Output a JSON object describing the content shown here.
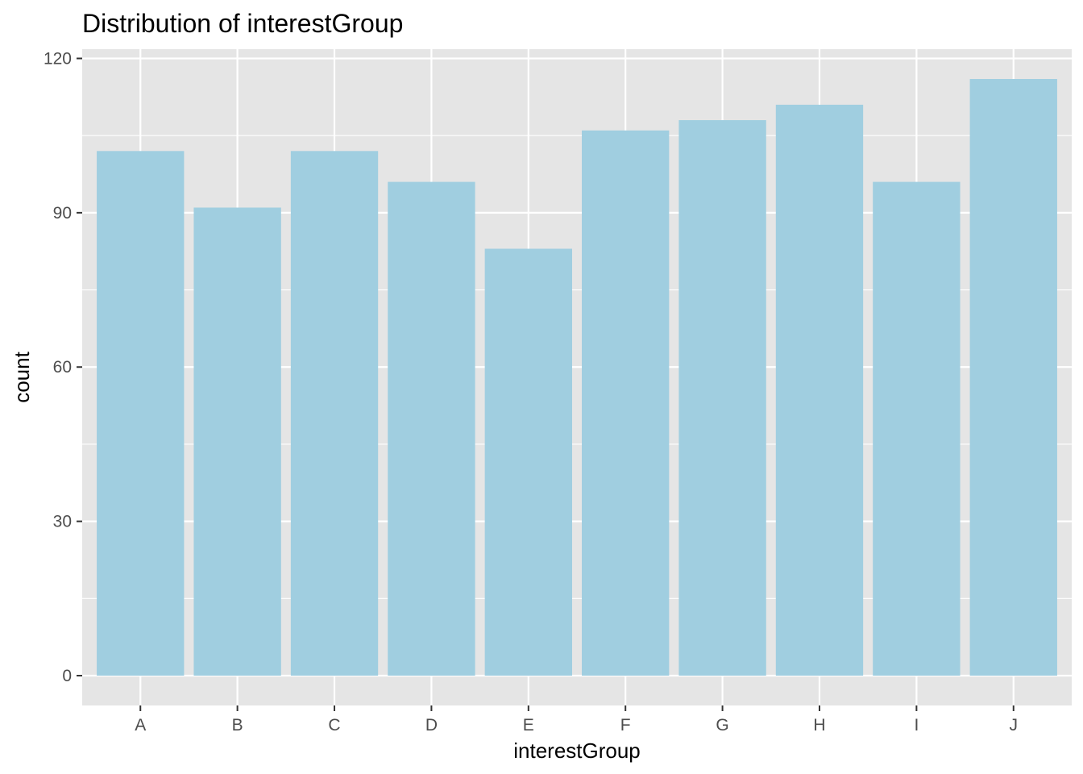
{
  "chart_data": {
    "type": "bar",
    "title": "Distribution of interestGroup",
    "xlabel": "interestGroup",
    "ylabel": "count",
    "categories": [
      "A",
      "B",
      "C",
      "D",
      "E",
      "F",
      "G",
      "H",
      "I",
      "J"
    ],
    "values": [
      102,
      91,
      102,
      96,
      83,
      106,
      108,
      111,
      96,
      116
    ],
    "ylim": [
      -5.8,
      121.8
    ],
    "y_ticks": [
      0,
      30,
      60,
      90,
      120
    ],
    "y_tick_labels": [
      "0",
      "30",
      "60",
      "90",
      "120"
    ],
    "y_minor_ticks": [
      15,
      45,
      75,
      105
    ],
    "grid": true,
    "legend": "none",
    "colors": {
      "bar": "#a0cee0",
      "panel_background": "#e5e5e5",
      "grid": "#ffffff",
      "tick": "#333333",
      "tick_label": "#4d4d4d"
    }
  }
}
